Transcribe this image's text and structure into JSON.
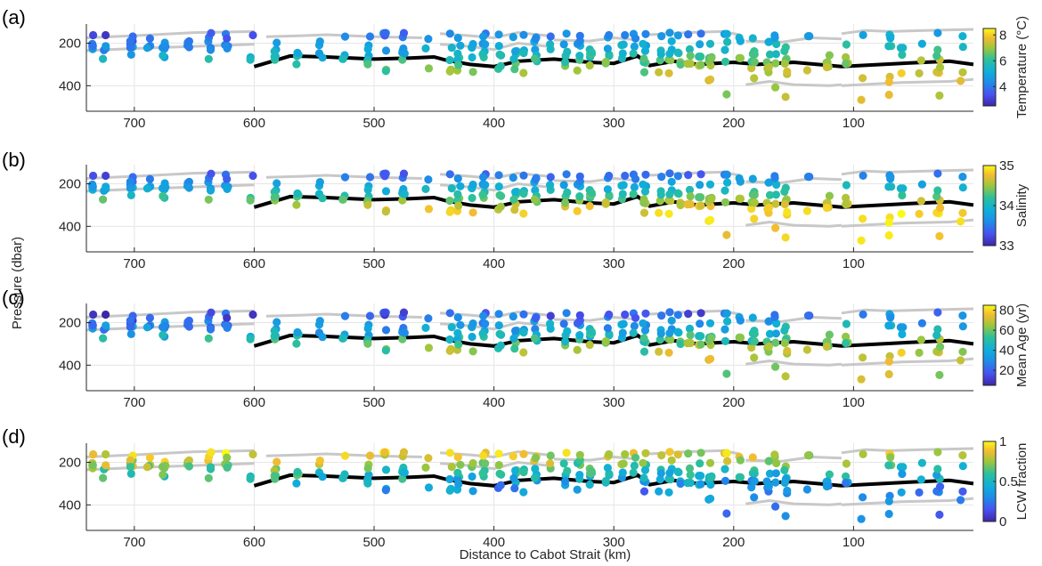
{
  "figure": {
    "ylabel": "Pressure (dbar)",
    "xlabel": "Distance to Cabot Strait (km)"
  },
  "chart_data": [
    {
      "type": "scatter",
      "panel_label": "(a)",
      "colorbar_label": "Temperature (°C)",
      "colorbar_range": [
        2.5,
        8.5
      ],
      "colorbar_ticks": [
        "4",
        "6",
        "8"
      ],
      "colorbar_tick_values": [
        4,
        6,
        8
      ],
      "colormap": "parula",
      "xlim": [
        740,
        0
      ],
      "ylim": [
        520,
        110
      ],
      "x_ticks": [
        "700",
        "600",
        "500",
        "400",
        "300",
        "200",
        "100"
      ],
      "x_tick_values": [
        700,
        600,
        500,
        400,
        300,
        200,
        100
      ],
      "y_ticks": [
        "200",
        "400"
      ],
      "y_tick_values": [
        200,
        400
      ],
      "grid": true
    },
    {
      "type": "scatter",
      "panel_label": "(b)",
      "colorbar_label": "Salinity",
      "colorbar_range": [
        33,
        35
      ],
      "colorbar_ticks": [
        "33",
        "34",
        "35"
      ],
      "colorbar_tick_values": [
        33,
        34,
        35
      ],
      "colormap": "parula",
      "xlim": [
        740,
        0
      ],
      "ylim": [
        520,
        110
      ],
      "x_ticks": [
        "700",
        "600",
        "500",
        "400",
        "300",
        "200",
        "100"
      ],
      "x_tick_values": [
        700,
        600,
        500,
        400,
        300,
        200,
        100
      ],
      "y_ticks": [
        "200",
        "400"
      ],
      "y_tick_values": [
        200,
        400
      ],
      "grid": true
    },
    {
      "type": "scatter",
      "panel_label": "(c)",
      "colorbar_label": "Mean Age (yr)",
      "colorbar_range": [
        5,
        85
      ],
      "colorbar_ticks": [
        "20",
        "40",
        "60",
        "80"
      ],
      "colorbar_tick_values": [
        20,
        40,
        60,
        80
      ],
      "colormap": "parula",
      "xlim": [
        740,
        0
      ],
      "ylim": [
        520,
        110
      ],
      "x_ticks": [
        "700",
        "600",
        "500",
        "400",
        "300",
        "200",
        "100"
      ],
      "x_tick_values": [
        700,
        600,
        500,
        400,
        300,
        200,
        100
      ],
      "y_ticks": [
        "200",
        "400"
      ],
      "y_tick_values": [
        200,
        400
      ],
      "grid": true
    },
    {
      "type": "scatter",
      "panel_label": "(d)",
      "colorbar_label": "LCW fraction",
      "colorbar_range": [
        0,
        1
      ],
      "colorbar_ticks": [
        "0",
        "0.5",
        "1"
      ],
      "colorbar_tick_values": [
        0,
        0.5,
        1
      ],
      "colormap": "parula",
      "xlim": [
        740,
        0
      ],
      "ylim": [
        520,
        110
      ],
      "x_ticks": [
        "700",
        "600",
        "500",
        "400",
        "300",
        "200",
        "100"
      ],
      "x_tick_values": [
        700,
        600,
        500,
        400,
        300,
        200,
        100
      ],
      "y_ticks": [
        "200",
        "400"
      ],
      "y_tick_values": [
        200,
        400
      ],
      "grid": true
    }
  ],
  "reference_lines": {
    "black_line": {
      "x": [
        600,
        570,
        540,
        500,
        470,
        450,
        440,
        420,
        400,
        380,
        350,
        320,
        300,
        280,
        270,
        250,
        230,
        200,
        180,
        150,
        110,
        60,
        20,
        0
      ],
      "y": [
        310,
        260,
        265,
        275,
        270,
        265,
        280,
        300,
        310,
        285,
        275,
        290,
        295,
        260,
        305,
        285,
        300,
        290,
        300,
        290,
        310,
        295,
        285,
        300
      ]
    },
    "grey_lines": [
      {
        "x": [
          740,
          700,
          650,
          600
        ],
        "y": [
          175,
          165,
          150,
          145
        ]
      },
      {
        "x": [
          740,
          700,
          650,
          600
        ],
        "y": [
          235,
          225,
          215,
          205
        ]
      },
      {
        "x": [
          590,
          560,
          540,
          500,
          460
        ],
        "y": [
          170,
          165,
          160,
          170,
          175
        ]
      },
      {
        "x": [
          445,
          420,
          400,
          380,
          355
        ],
        "y": [
          155,
          165,
          175,
          150,
          165
        ]
      },
      {
        "x": [
          445,
          420,
          400,
          380,
          355
        ],
        "y": [
          205,
          215,
          230,
          200,
          215
        ]
      },
      {
        "x": [
          350,
          320,
          300,
          280
        ],
        "y": [
          185,
          190,
          175,
          185
        ]
      },
      {
        "x": [
          270,
          240,
          210,
          195
        ],
        "y": [
          160,
          150,
          145,
          160
        ]
      },
      {
        "x": [
          190,
          160,
          135,
          110
        ],
        "y": [
          190,
          195,
          175,
          180
        ]
      },
      {
        "x": [
          110,
          90,
          70,
          40,
          0
        ],
        "y": [
          155,
          140,
          145,
          140,
          135
        ]
      },
      {
        "x": [
          190,
          170,
          150,
          120,
          110
        ],
        "y": [
          395,
          380,
          395,
          400,
          395
        ]
      },
      {
        "x": [
          110,
          60,
          20,
          0
        ],
        "y": [
          400,
          385,
          380,
          370
        ]
      }
    ]
  }
}
